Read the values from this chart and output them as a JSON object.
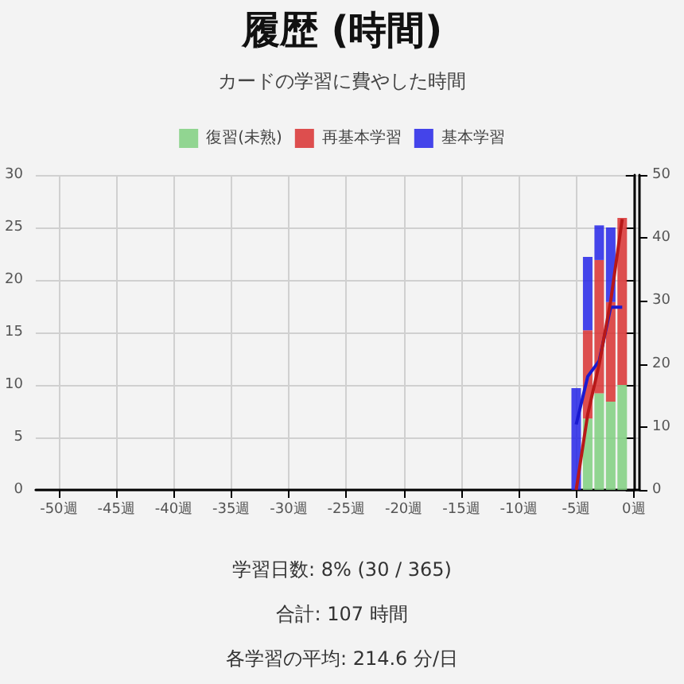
{
  "chart_data": {
    "type": "bar",
    "title": "履歴 (時間)",
    "subtitle": "カードの学習に費やした時間",
    "stacked": true,
    "x": [
      -5,
      -4,
      -3,
      -2,
      -1
    ],
    "series": [
      {
        "name": "復習(未熟)",
        "color": "#7fcf7f",
        "values": [
          0,
          6.8,
          9.2,
          8.4,
          10
        ]
      },
      {
        "name": "再基本学習",
        "color": "#d83030",
        "values": [
          0,
          8.4,
          12.7,
          9.5,
          15.9
        ]
      },
      {
        "name": "基本学習",
        "color": "#2424e8",
        "values": [
          9.7,
          7,
          3.3,
          7.1,
          0
        ]
      },
      {
        "type": "line",
        "axis": "y2",
        "color": "#1a1ad0",
        "values": [
          10.4,
          18,
          20.5,
          29,
          29
        ]
      },
      {
        "type": "line",
        "axis": "y2",
        "color": "#b81818",
        "values": [
          0,
          12,
          20,
          30,
          43
        ]
      }
    ],
    "xlim": [
      -52,
      0.5
    ],
    "xticks": [
      {
        "value": -50,
        "label": "-50週"
      },
      {
        "value": -45,
        "label": "-45週"
      },
      {
        "value": -40,
        "label": "-40週"
      },
      {
        "value": -35,
        "label": "-35週"
      },
      {
        "value": -30,
        "label": "-30週"
      },
      {
        "value": -25,
        "label": "-25週"
      },
      {
        "value": -20,
        "label": "-20週"
      },
      {
        "value": -15,
        "label": "-15週"
      },
      {
        "value": -10,
        "label": "-10週"
      },
      {
        "value": -5,
        "label": "-5週"
      },
      {
        "value": 0,
        "label": "0週"
      }
    ],
    "ylim": [
      0,
      30
    ],
    "yticks": [
      0,
      5,
      10,
      15,
      20,
      25,
      30
    ],
    "y2lim": [
      0,
      50
    ],
    "y2ticks": [
      0,
      10,
      20,
      30,
      40,
      50
    ],
    "grid": true,
    "legend": "top",
    "marker": "none",
    "annotations": [
      "学習日数: 8% (30 / 365)",
      "合計: 107 時間",
      "各学習の平均: 214.6 分/日"
    ]
  }
}
